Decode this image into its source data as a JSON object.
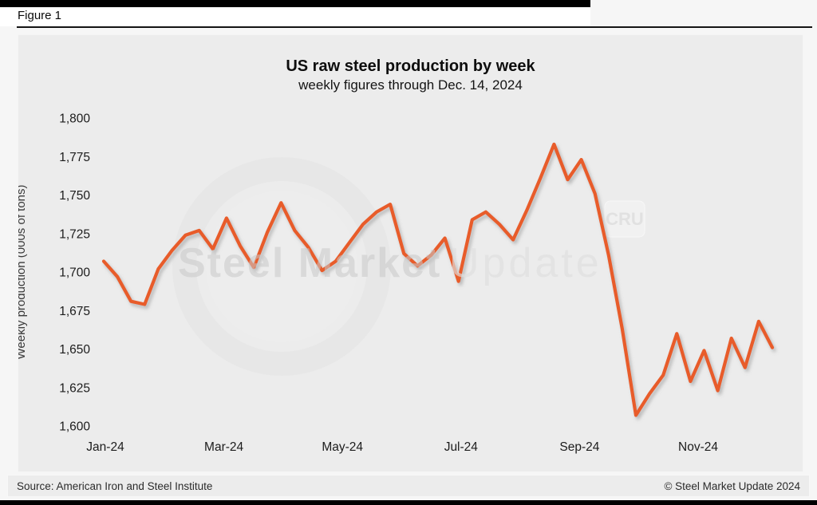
{
  "figure_label": "Figure 1",
  "footer": {
    "source": "Source: American Iron and Steel Institute",
    "copyright": "© Steel Market Update 2024"
  },
  "watermark": {
    "part1": "Steel Market",
    "part2": "Update",
    "badge": "CRU"
  },
  "chart_data": {
    "type": "line",
    "title": "US raw steel production by week",
    "subtitle": "weekly figures through Dec. 14, 2024",
    "xlabel": "",
    "ylabel": "Weekly production (000s of tons)",
    "ylim": [
      1600,
      1800
    ],
    "grid": false,
    "legend": "none",
    "line_color": "#E85C2A",
    "plot_background": "#ececec",
    "ytick_values": [
      1600,
      1625,
      1650,
      1675,
      1700,
      1725,
      1750,
      1775,
      1800
    ],
    "ytick_labels": [
      "1,600",
      "1,625",
      "1,650",
      "1,675",
      "1,700",
      "1,725",
      "1,750",
      "1,775",
      "1,800"
    ],
    "xtick_labels": [
      "Jan-24",
      "Mar-24",
      "May-24",
      "Jul-24",
      "Sep-24",
      "Nov-24"
    ],
    "series": [
      {
        "name": "US weekly raw steel production (000s of tons)",
        "week_ending": [
          "2024-01-06",
          "2024-01-13",
          "2024-01-20",
          "2024-01-27",
          "2024-02-03",
          "2024-02-10",
          "2024-02-17",
          "2024-02-24",
          "2024-03-02",
          "2024-03-09",
          "2024-03-16",
          "2024-03-23",
          "2024-03-30",
          "2024-04-06",
          "2024-04-13",
          "2024-04-20",
          "2024-04-27",
          "2024-05-04",
          "2024-05-11",
          "2024-05-18",
          "2024-05-25",
          "2024-06-01",
          "2024-06-08",
          "2024-06-15",
          "2024-06-22",
          "2024-06-29",
          "2024-07-06",
          "2024-07-13",
          "2024-07-20",
          "2024-07-27",
          "2024-08-03",
          "2024-08-10",
          "2024-08-17",
          "2024-08-24",
          "2024-08-31",
          "2024-09-07",
          "2024-09-14",
          "2024-09-21",
          "2024-09-28",
          "2024-10-05",
          "2024-10-12",
          "2024-10-19",
          "2024-10-26",
          "2024-11-02",
          "2024-11-09",
          "2024-11-16",
          "2024-11-23",
          "2024-11-30",
          "2024-12-07",
          "2024-12-14"
        ],
        "values": [
          1707,
          1697,
          1681,
          1679,
          1702,
          1714,
          1724,
          1727,
          1715,
          1735,
          1717,
          1703,
          1726,
          1745,
          1727,
          1716,
          1701,
          1707,
          1719,
          1731,
          1739,
          1744,
          1712,
          1704,
          1711,
          1722,
          1694,
          1734,
          1739,
          1731,
          1721,
          1740,
          1761,
          1783,
          1760,
          1773,
          1751,
          1711,
          1663,
          1607,
          1621,
          1633,
          1660,
          1629,
          1649,
          1623,
          1657,
          1638,
          1668,
          1651
        ]
      }
    ]
  }
}
